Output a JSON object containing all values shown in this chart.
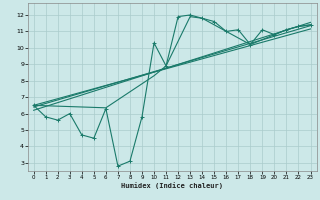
{
  "xlabel": "Humidex (Indice chaleur)",
  "bg_color": "#cce8e8",
  "grid_color": "#aacccc",
  "line_color": "#1a7a6a",
  "xlim": [
    -0.5,
    23.5
  ],
  "ylim": [
    2.5,
    12.7
  ],
  "xticks": [
    0,
    1,
    2,
    3,
    4,
    5,
    6,
    7,
    8,
    9,
    10,
    11,
    12,
    13,
    14,
    15,
    16,
    17,
    18,
    19,
    20,
    21,
    22,
    23
  ],
  "yticks": [
    3,
    4,
    5,
    6,
    7,
    8,
    9,
    10,
    11,
    12
  ],
  "line1_x": [
    0,
    1,
    2,
    3,
    4,
    5,
    6,
    7,
    8,
    9,
    10,
    11,
    12,
    13,
    14,
    15,
    16,
    17,
    18,
    19,
    20,
    21,
    22,
    23
  ],
  "line1_y": [
    6.5,
    5.8,
    5.6,
    6.0,
    4.7,
    4.5,
    6.3,
    2.8,
    3.1,
    5.8,
    10.3,
    8.9,
    11.9,
    12.0,
    11.8,
    11.6,
    11.0,
    11.1,
    10.2,
    11.1,
    10.8,
    11.1,
    11.3,
    11.4
  ],
  "line2_x": [
    0,
    6,
    10,
    11,
    13,
    14,
    16,
    18,
    20,
    21,
    22,
    23
  ],
  "line2_y": [
    6.5,
    6.35,
    8.3,
    8.9,
    11.9,
    11.8,
    11.0,
    10.2,
    10.8,
    11.1,
    11.3,
    11.4
  ],
  "line3_x": [
    0,
    23
  ],
  "line3_y": [
    6.4,
    11.35
  ],
  "line4_x": [
    0,
    23
  ],
  "line4_y": [
    6.2,
    11.55
  ],
  "line5_x": [
    0,
    23
  ],
  "line5_y": [
    6.5,
    11.15
  ]
}
